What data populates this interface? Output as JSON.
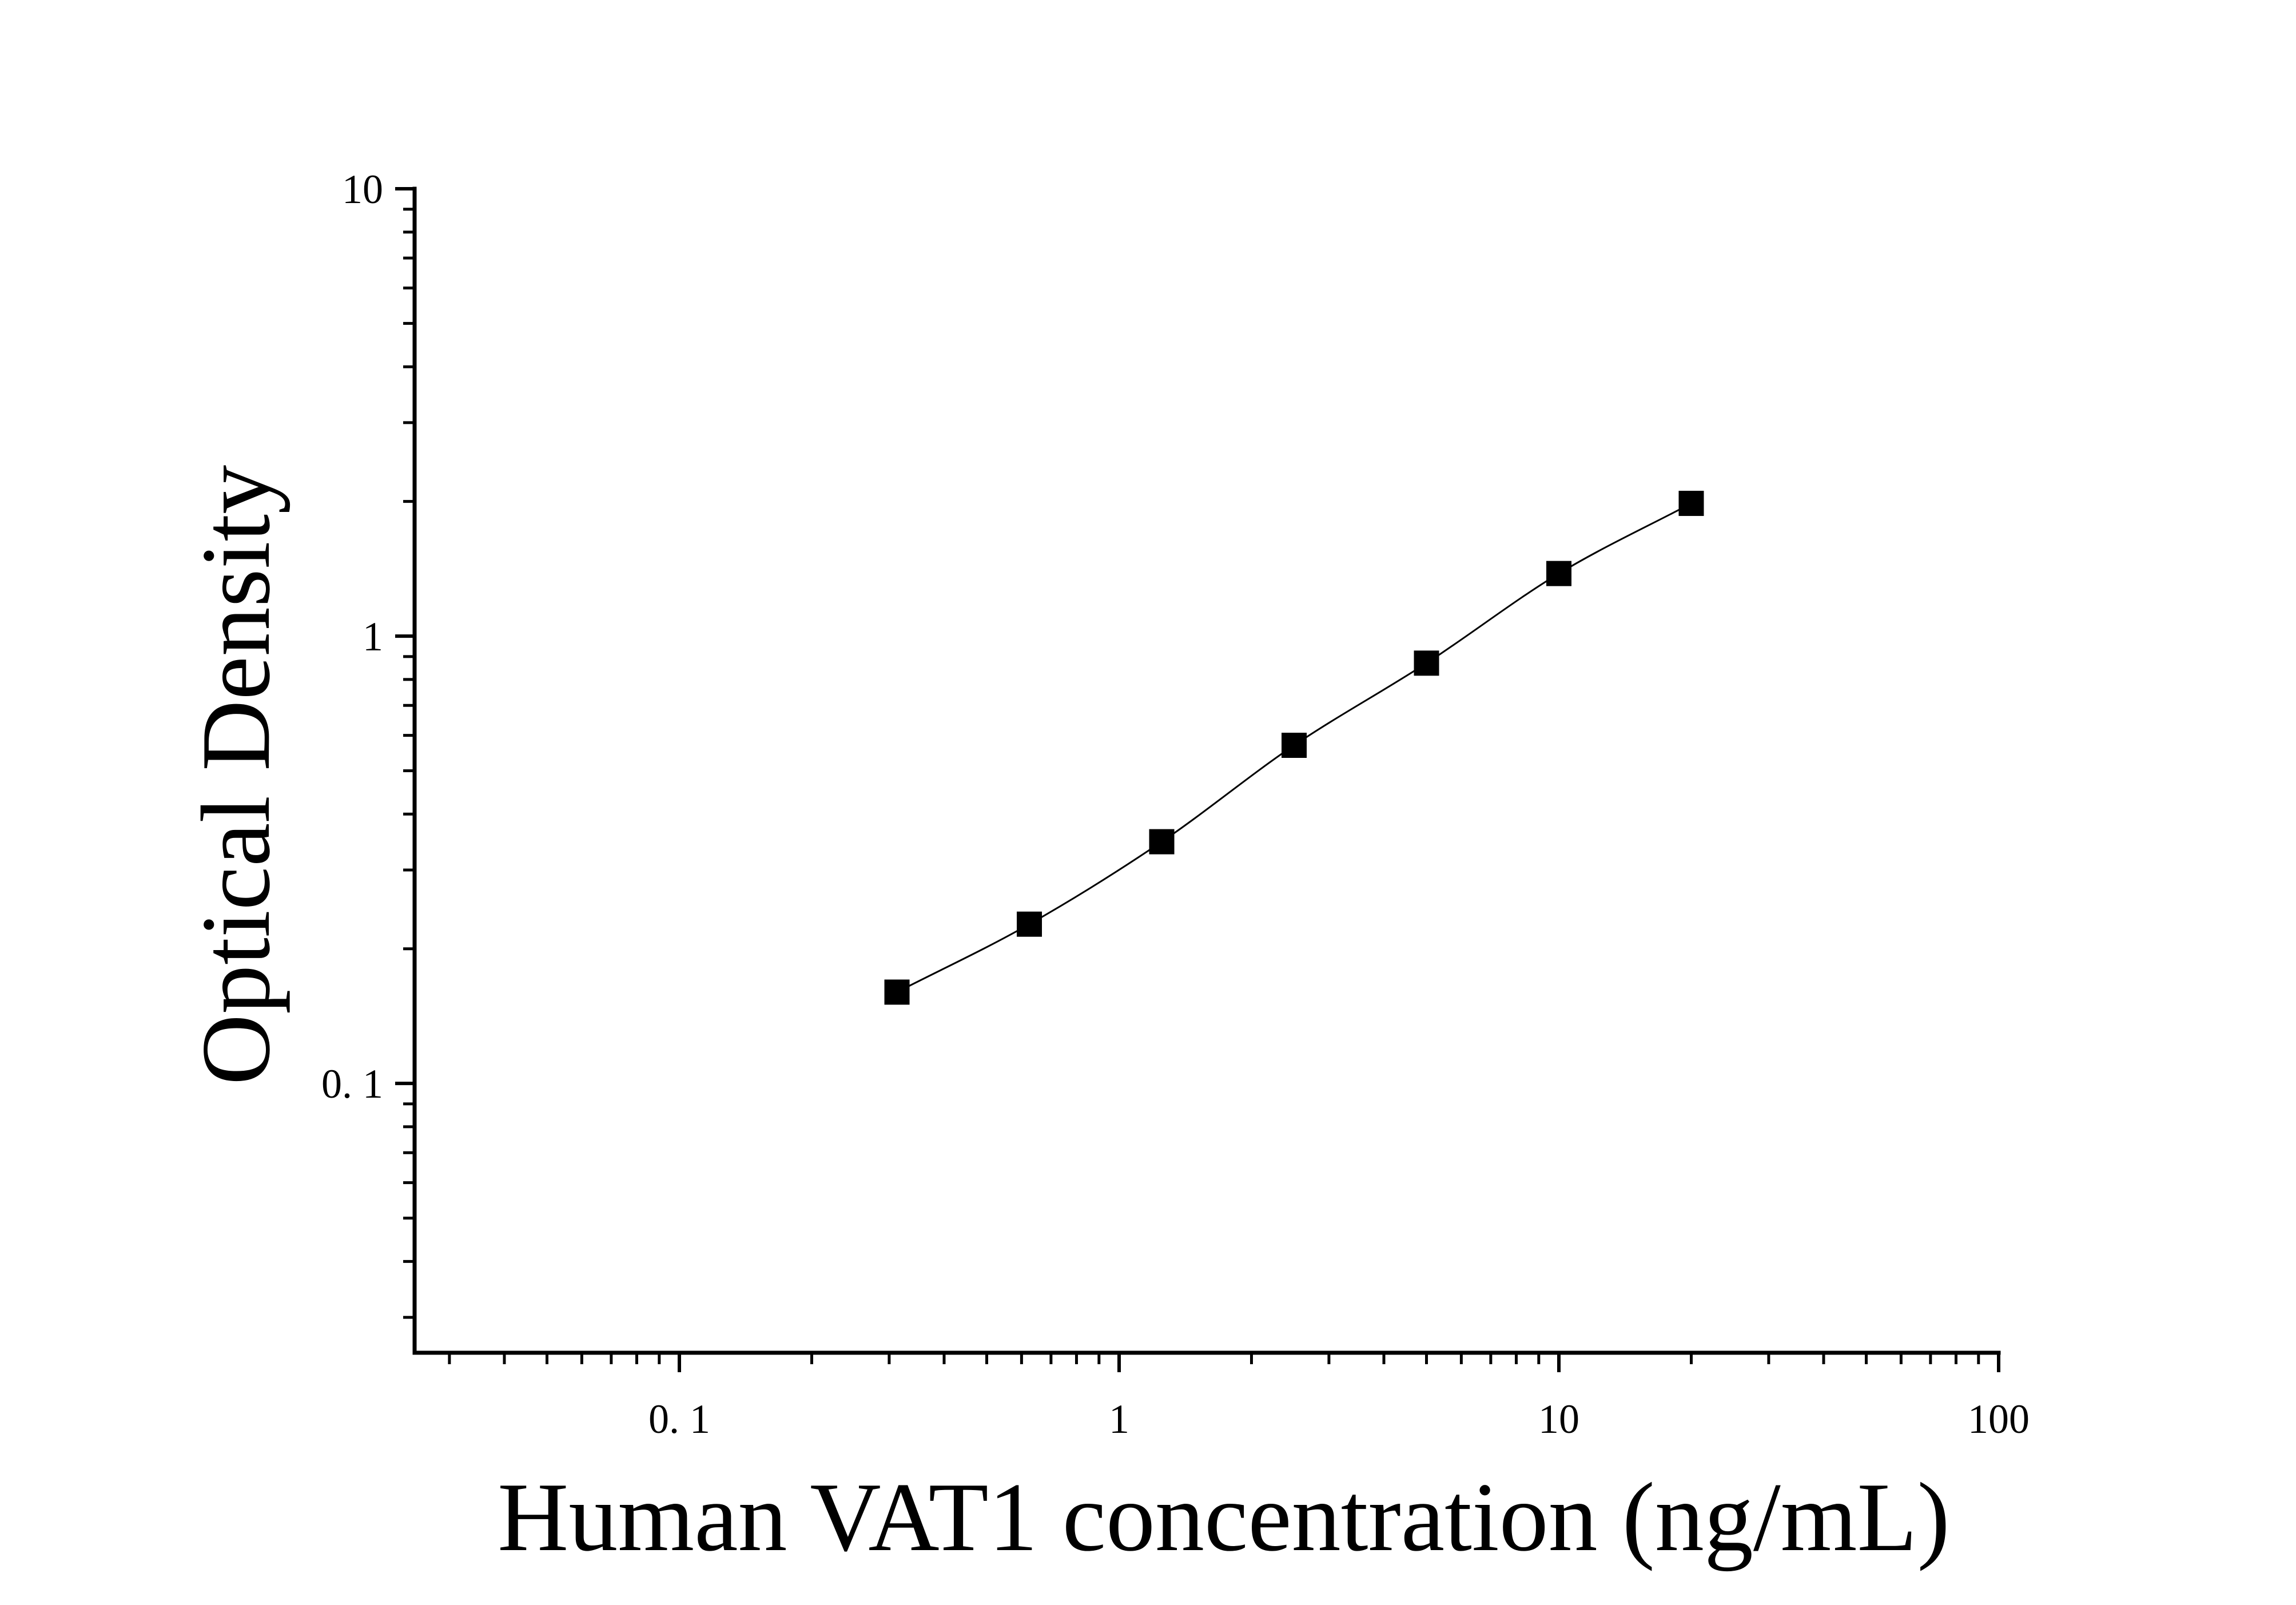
{
  "chart_data": {
    "type": "scatter",
    "title": "",
    "xlabel": "Human VAT1 concentration (ng/mL)",
    "ylabel": "Optical Density",
    "xscale": "log",
    "yscale": "log",
    "xlim": [
      0.025,
      100
    ],
    "ylim": [
      0.025,
      10
    ],
    "x_tick_labels": [
      "0. 1",
      "1",
      "10",
      "100"
    ],
    "y_tick_labels": [
      "0. 1",
      "1",
      "10"
    ],
    "grid": false,
    "legend": "none",
    "marker": "square",
    "marker_color": "#000000",
    "line_color": "#000000",
    "fit_curve": true,
    "series": [
      {
        "x": [
          0.3125,
          0.625,
          1.25,
          2.5,
          5,
          10,
          20
        ],
        "y": [
          0.16,
          0.227,
          0.347,
          0.57,
          0.87,
          1.38,
          1.98
        ]
      }
    ]
  }
}
